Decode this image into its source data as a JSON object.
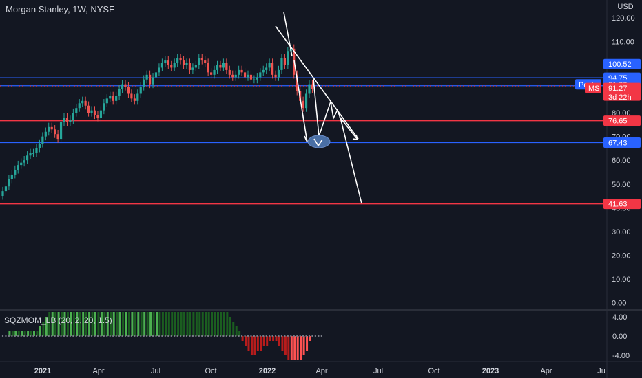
{
  "header": {
    "title": "Morgan Stanley, 1W, NYSE",
    "currency": "USD"
  },
  "price_axis": {
    "ticks": [
      "120.00",
      "110.00",
      "100.00",
      "90.00",
      "80.00",
      "70.00",
      "60.00",
      "50.00",
      "40.00",
      "30.00",
      "20.00",
      "10.00",
      "0.00"
    ],
    "tick_values": [
      120,
      110,
      100,
      90,
      80,
      70,
      60,
      50,
      40,
      30,
      20,
      10,
      0
    ]
  },
  "indicator": {
    "label": "SQZMOM_LB (20, 2, 20, 1.5)",
    "ticks": [
      "4.00",
      "0.00",
      "-4.00"
    ],
    "tick_values": [
      4,
      0,
      -4
    ]
  },
  "time_axis": {
    "labels": [
      "2021",
      "Apr",
      "Jul",
      "Oct",
      "2022",
      "Apr",
      "Jul",
      "Oct",
      "2023",
      "Apr",
      "Ju"
    ]
  },
  "price_labels": [
    {
      "text": "100.52",
      "value": 100.52,
      "color": "#2962ff"
    },
    {
      "text": "94.75",
      "value": 94.75,
      "color": "#2962ff"
    },
    {
      "text": "91.38",
      "value": 91.38,
      "color": "#2962ff",
      "tag": "Post"
    },
    {
      "text": "91.27",
      "value": 91.27,
      "color": "#f23645",
      "tag": "MS",
      "sub": "3d 22h"
    },
    {
      "text": "76.65",
      "value": 76.65,
      "color": "#f23645"
    },
    {
      "text": "67.43",
      "value": 67.43,
      "color": "#2962ff"
    },
    {
      "text": "41.63",
      "value": 41.63,
      "color": "#f23645"
    }
  ],
  "hlines": [
    {
      "value": 94.75,
      "color": "#2962ff"
    },
    {
      "value": 91.38,
      "color": "#2962ff"
    },
    {
      "value": 76.65,
      "color": "#f23645"
    },
    {
      "value": 67.43,
      "color": "#2962ff"
    },
    {
      "value": 41.63,
      "color": "#f23645"
    }
  ],
  "colors": {
    "up": "#26a69a",
    "down": "#ef5350",
    "mom_up": "#4caf50",
    "mom_up_dark": "#1b5e20",
    "mom_down": "#ff5252",
    "mom_down_dark": "#b71c1c"
  }
}
